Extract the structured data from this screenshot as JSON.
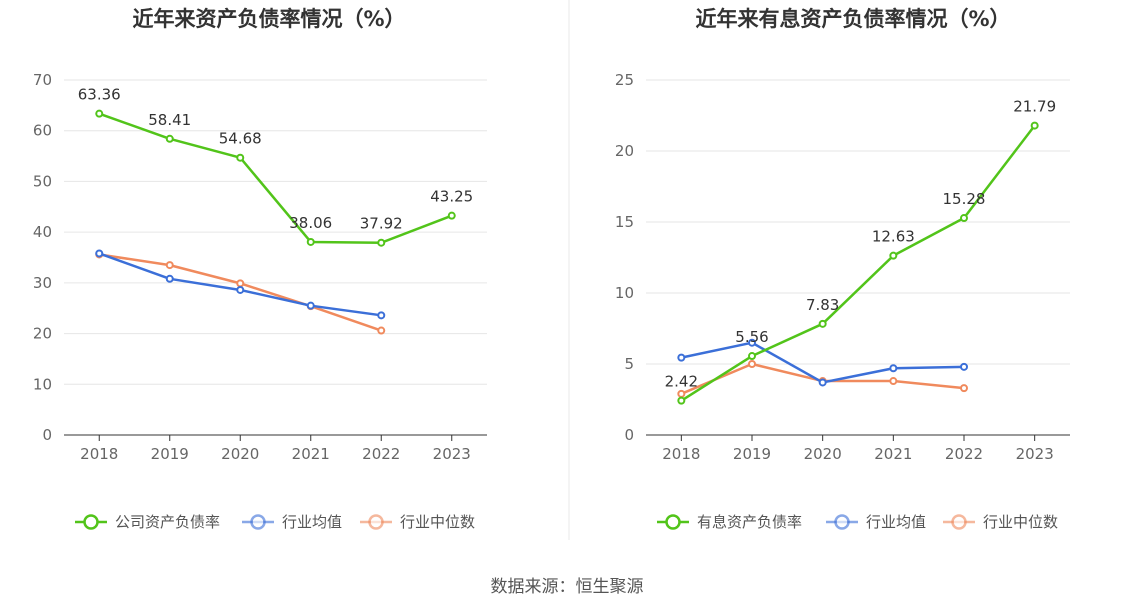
{
  "chart_data": [
    {
      "type": "line",
      "title": "近年来资产负债率情况（%）",
      "categories": [
        "2018",
        "2019",
        "2020",
        "2021",
        "2022",
        "2023"
      ],
      "ylim": [
        0,
        70
      ],
      "yticks": [
        0,
        10,
        20,
        30,
        40,
        50,
        60,
        70
      ],
      "grid": true,
      "legend_position": "bottom",
      "series": [
        {
          "name": "公司资产负债率",
          "color": "#52c41a",
          "values": [
            63.36,
            58.41,
            54.68,
            38.06,
            37.92,
            43.25
          ],
          "labels": [
            "63.36",
            "58.41",
            "54.68",
            "38.06",
            "37.92",
            "43.25"
          ]
        },
        {
          "name": "行业均值",
          "color": "#3b6fd8",
          "values": [
            35.8,
            30.8,
            28.6,
            25.5,
            23.6,
            null
          ]
        },
        {
          "name": "行业中位数",
          "color": "#f08a5d",
          "values": [
            35.6,
            33.5,
            29.9,
            25.4,
            20.6,
            null
          ]
        }
      ]
    },
    {
      "type": "line",
      "title": "近年来有息资产负债率情况（%）",
      "categories": [
        "2018",
        "2019",
        "2020",
        "2021",
        "2022",
        "2023"
      ],
      "ylim": [
        0,
        25
      ],
      "yticks": [
        0,
        5,
        10,
        15,
        20,
        25
      ],
      "grid": true,
      "legend_position": "bottom",
      "series": [
        {
          "name": "有息资产负债率",
          "color": "#52c41a",
          "values": [
            2.42,
            5.56,
            7.83,
            12.63,
            15.28,
            21.79
          ],
          "labels": [
            "2.42",
            "5.56",
            "7.83",
            "12.63",
            "15.28",
            "21.79"
          ]
        },
        {
          "name": "行业均值",
          "color": "#3b6fd8",
          "values": [
            5.45,
            6.5,
            3.7,
            4.7,
            4.8,
            null
          ]
        },
        {
          "name": "行业中位数",
          "color": "#f08a5d",
          "values": [
            2.9,
            5.0,
            3.8,
            3.8,
            3.3,
            null
          ]
        }
      ]
    }
  ],
  "source": "数据来源：恒生聚源"
}
